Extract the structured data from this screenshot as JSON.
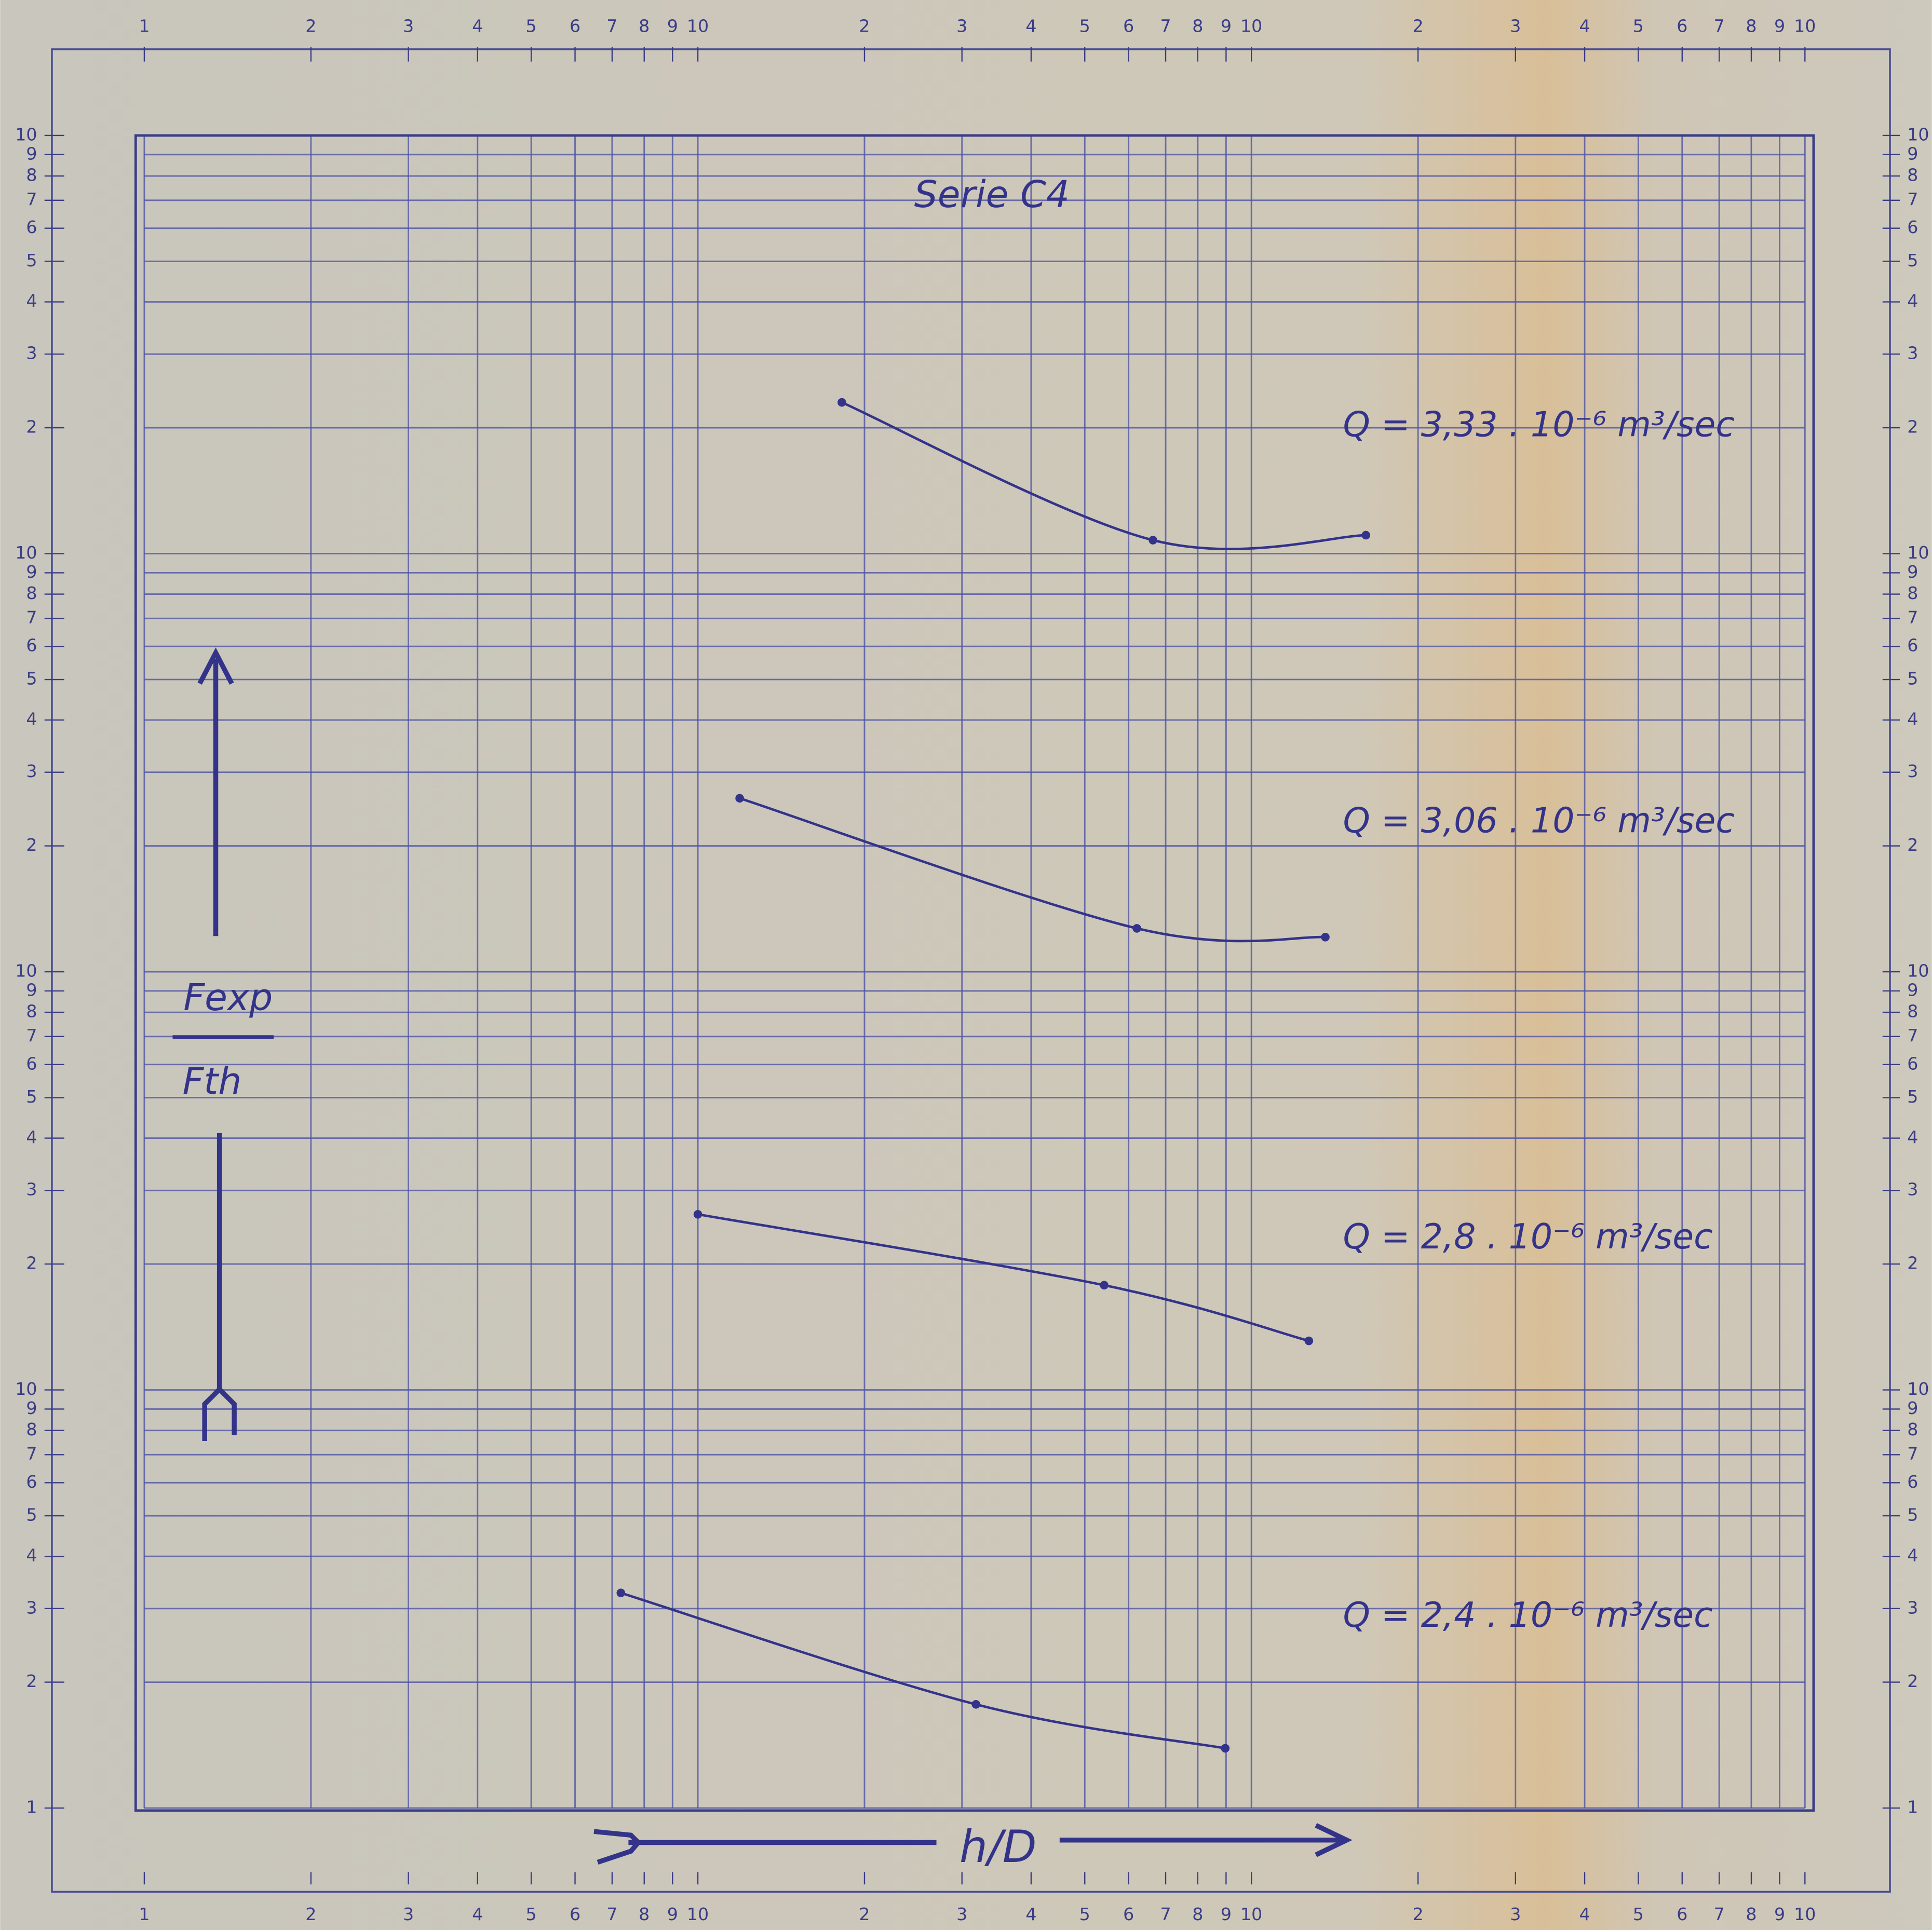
{
  "chart_data": {
    "type": "line",
    "title": "Serie C4",
    "x_label": "h/D",
    "y_label": {
      "numerator": "Fexp",
      "denominator": "Fth"
    },
    "x_log": true,
    "y_log": true,
    "grid": true,
    "xlim": [
      1,
      1000
    ],
    "ylim": [
      1,
      10000
    ],
    "xticks": [
      1,
      2,
      3,
      4,
      5,
      6,
      7,
      8,
      9,
      10,
      {
        "value": 20,
        "label": "2"
      },
      {
        "value": 30,
        "label": "3"
      },
      {
        "value": 40,
        "label": "4"
      },
      {
        "value": 50,
        "label": "5"
      },
      {
        "value": 60,
        "label": "6"
      },
      {
        "value": 70,
        "label": "7"
      },
      {
        "value": 80,
        "label": "8"
      },
      {
        "value": 90,
        "label": "9"
      },
      {
        "value": 100,
        "label": "10"
      },
      {
        "value": 200,
        "label": "2"
      },
      {
        "value": 300,
        "label": "3"
      },
      {
        "value": 400,
        "label": "4"
      },
      {
        "value": 500,
        "label": "5"
      },
      {
        "value": 600,
        "label": "6"
      },
      {
        "value": 700,
        "label": "7"
      },
      {
        "value": 800,
        "label": "8"
      },
      {
        "value": 900,
        "label": "9"
      },
      {
        "value": 1000,
        "label": "10"
      }
    ],
    "yticks": [
      1,
      2,
      3,
      4,
      5,
      6,
      7,
      8,
      9,
      10,
      {
        "value": 20,
        "label": "2"
      },
      {
        "value": 30,
        "label": "3"
      },
      {
        "value": 40,
        "label": "4"
      },
      {
        "value": 50,
        "label": "5"
      },
      {
        "value": 60,
        "label": "6"
      },
      {
        "value": 70,
        "label": "7"
      },
      {
        "value": 80,
        "label": "8"
      },
      {
        "value": 90,
        "label": "9"
      },
      {
        "value": 100,
        "label": "10"
      },
      {
        "value": 200,
        "label": "2"
      },
      {
        "value": 300,
        "label": "3"
      },
      {
        "value": 400,
        "label": "4"
      },
      {
        "value": 500,
        "label": "5"
      },
      {
        "value": 600,
        "label": "6"
      },
      {
        "value": 700,
        "label": "7"
      },
      {
        "value": 800,
        "label": "8"
      },
      {
        "value": 900,
        "label": "9"
      },
      {
        "value": 1000,
        "label": "10"
      },
      {
        "value": 2000,
        "label": "2"
      },
      {
        "value": 3000,
        "label": "3"
      },
      {
        "value": 4000,
        "label": "4"
      },
      {
        "value": 5000,
        "label": "5"
      },
      {
        "value": 6000,
        "label": "6"
      },
      {
        "value": 7000,
        "label": "7"
      },
      {
        "value": 8000,
        "label": "8"
      },
      {
        "value": 9000,
        "label": "9"
      },
      {
        "value": 10000,
        "label": "10"
      }
    ],
    "series": [
      {
        "name": "Q = 3,33 . 10⁻⁶ m³/sec",
        "color": "#34338a",
        "x": [
          18.2,
          66.4,
          161
        ],
        "values": [
          2300,
          1077,
          1107
        ]
      },
      {
        "name": "Q = 3,06 . 10⁻⁶ m³/sec",
        "color": "#34338a",
        "x": [
          11.9,
          62.1,
          136
        ],
        "values": [
          260,
          127,
          121
        ]
      },
      {
        "name": "Q = 2,8 . 10⁻⁶ m³/sec",
        "color": "#34338a",
        "x": [
          10,
          54.2,
          127
        ],
        "values": [
          26.3,
          17.8,
          13.1
        ]
      },
      {
        "name": "Q = 2,4 . 10⁻⁶ m³/sec",
        "color": "#34338a",
        "x": [
          7.26,
          31.8,
          89.7
        ],
        "values": [
          3.27,
          1.77,
          1.39
        ]
      }
    ]
  }
}
